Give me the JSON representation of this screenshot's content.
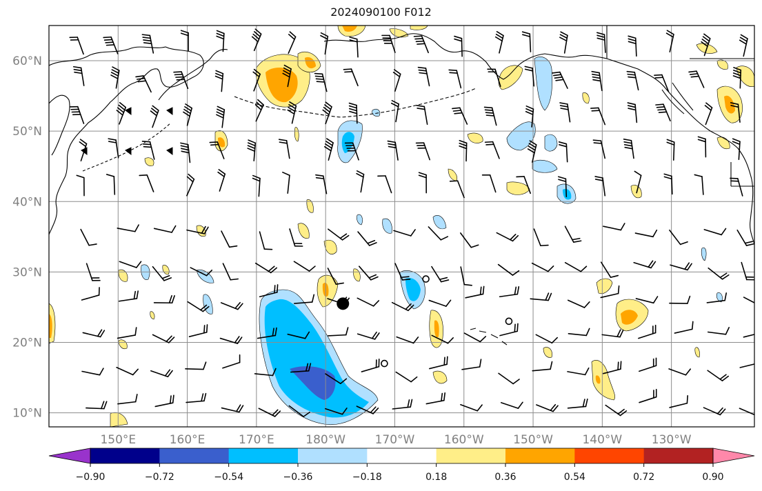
{
  "title": "2024090100 F012",
  "map": {
    "lat_labels": [
      "60°N",
      "50°N",
      "40°N",
      "30°N",
      "20°N",
      "10°N"
    ],
    "lat_values": [
      60,
      50,
      40,
      30,
      20,
      10
    ],
    "lon_labels": [
      "150°E",
      "160°E",
      "170°E",
      "180°W",
      "170°W",
      "160°W",
      "150°W",
      "140°W",
      "130°W"
    ],
    "lon_values_east": [
      150,
      160,
      170,
      180,
      190,
      200,
      210,
      220,
      230
    ],
    "lon_range_east": [
      140,
      242
    ],
    "lat_range": [
      8,
      65
    ],
    "grid": true,
    "storm_markers": [
      {
        "lon_e": 182.5,
        "lat": 25.5,
        "kind": "filled"
      },
      {
        "lon_e": 194.5,
        "lat": 29,
        "kind": "open"
      },
      {
        "lon_e": 206.5,
        "lat": 23,
        "kind": "open"
      },
      {
        "lon_e": 188.5,
        "lat": 17,
        "kind": "open"
      }
    ]
  },
  "colorbar": {
    "labels": [
      "−0.90",
      "−0.72",
      "−0.54",
      "−0.36",
      "−0.18",
      "0.18",
      "0.36",
      "0.54",
      "0.72",
      "0.90"
    ],
    "bounds": [
      -0.9,
      -0.72,
      -0.54,
      -0.36,
      -0.18,
      0.18,
      0.36,
      0.54,
      0.72,
      0.9
    ],
    "colors": [
      "#9933cc",
      "#00008b",
      "#3a5fcd",
      "#00bfff",
      "#b0e0ff",
      "#ffffff",
      "#ffee88",
      "#ffa500",
      "#ff4500",
      "#b22222",
      "#ff88aa"
    ],
    "extend": "both"
  }
}
